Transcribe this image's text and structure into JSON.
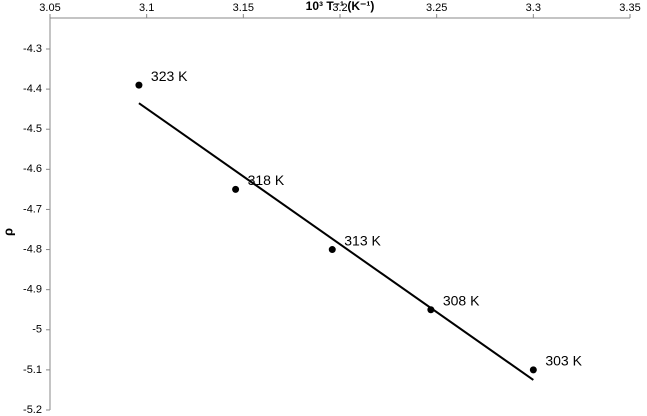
{
  "chart_data": {
    "type": "scatter",
    "x_label": "10³ T⁻¹ (K⁻¹)",
    "y_label": "ρ",
    "x": [
      3.096,
      3.146,
      3.196,
      3.247,
      3.3
    ],
    "values": [
      -4.39,
      -4.65,
      -4.8,
      -4.95,
      -5.1
    ],
    "point_labels": [
      "323 K",
      "318 K",
      "313 K",
      "308 K",
      "303 K"
    ],
    "color": "#000000",
    "trendline": {
      "x": [
        3.096,
        3.3
      ],
      "y": [
        -4.435,
        -5.125
      ]
    },
    "xlim": [
      3.05,
      3.35
    ],
    "xticks": [
      3.05,
      3.1,
      3.15,
      3.2,
      3.25,
      3.3,
      3.35
    ],
    "ylim": [
      -5.2,
      -4.3
    ],
    "yticks": [
      -4.3,
      -4.4,
      -4.5,
      -4.6,
      -4.7,
      -4.8,
      -4.9,
      -5,
      -5.1,
      -5.2
    ]
  }
}
